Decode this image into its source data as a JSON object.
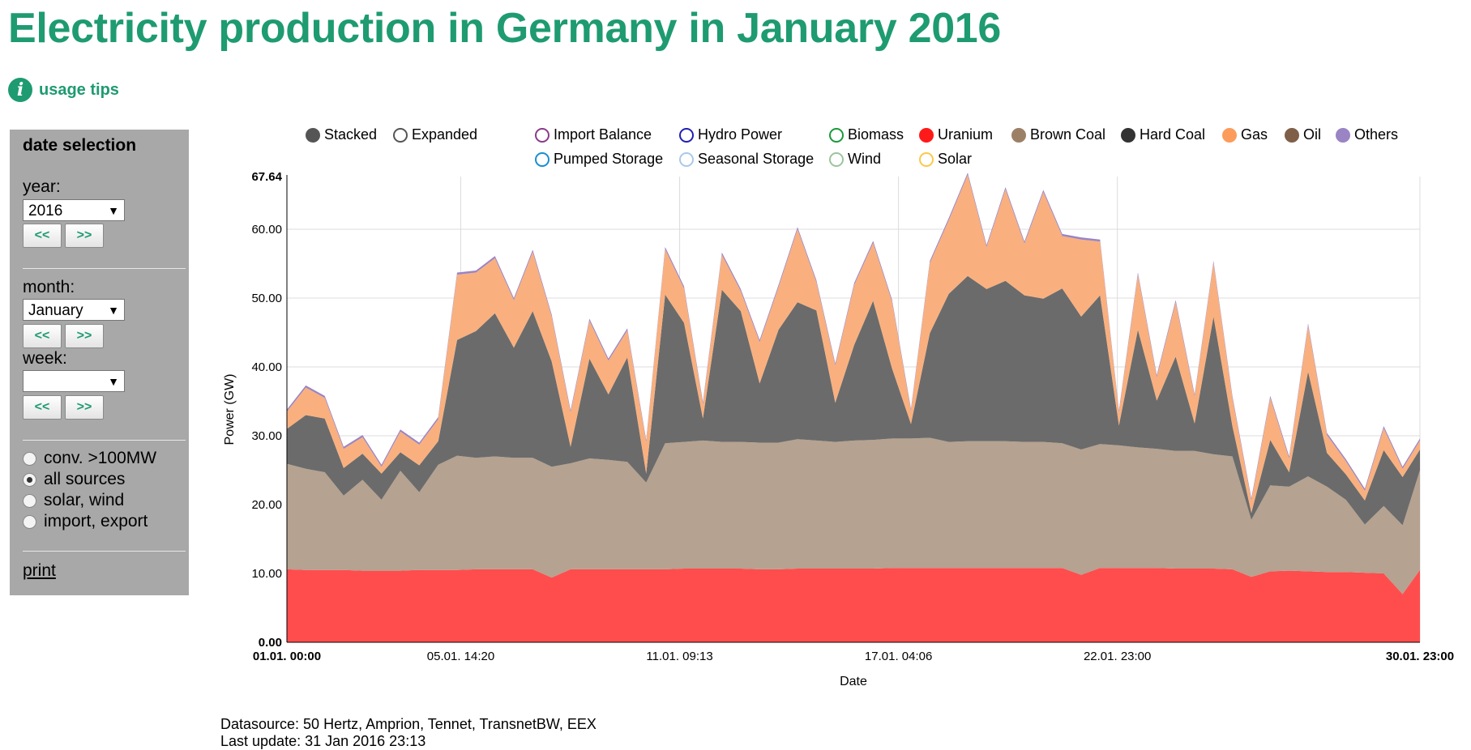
{
  "title": "Electricity production in Germany in January 2016",
  "usage_tips": "usage tips",
  "sidebar": {
    "heading": "date selection",
    "year_label": "year:",
    "year_value": "2016",
    "month_label": "month:",
    "month_value": "January",
    "week_label": "week:",
    "week_value": "",
    "prev": "<<",
    "next": ">>",
    "radios": [
      {
        "label": "conv. >100MW",
        "selected": false
      },
      {
        "label": "all sources",
        "selected": true
      },
      {
        "label": "solar, wind",
        "selected": false
      },
      {
        "label": "import, export",
        "selected": false
      }
    ],
    "print": "print"
  },
  "legend": {
    "modes": [
      {
        "label": "Stacked",
        "color": "#555555",
        "filled": true
      },
      {
        "label": "Expanded",
        "color": "#555555",
        "filled": false
      }
    ],
    "sources": [
      {
        "label": "Import Balance",
        "color": "#8b3a8b",
        "filled": false
      },
      {
        "label": "Hydro Power",
        "color": "#1f1fb4",
        "filled": false
      },
      {
        "label": "Biomass",
        "color": "#1a9a3a",
        "filled": false
      },
      {
        "label": "Uranium",
        "color": "#ff1a1a",
        "filled": true
      },
      {
        "label": "Brown Coal",
        "color": "#9c8066",
        "filled": true
      },
      {
        "label": "Hard Coal",
        "color": "#333333",
        "filled": true
      },
      {
        "label": "Gas",
        "color": "#fc9c5c",
        "filled": true
      },
      {
        "label": "Oil",
        "color": "#7f5f48",
        "filled": true
      },
      {
        "label": "Others",
        "color": "#9a84c4",
        "filled": true
      },
      {
        "label": "Pumped Storage",
        "color": "#1a8ed0",
        "filled": false
      },
      {
        "label": "Seasonal Storage",
        "color": "#a9c8ec",
        "filled": false
      },
      {
        "label": "Wind",
        "color": "#9cc49c",
        "filled": false
      },
      {
        "label": "Solar",
        "color": "#fcc84a",
        "filled": false
      }
    ]
  },
  "chart_data": {
    "type": "area",
    "stacked": true,
    "xlabel": "Date",
    "ylabel": "Power (GW)",
    "ylim": [
      0,
      67.64
    ],
    "yticks": [
      0.0,
      10.0,
      20.0,
      30.0,
      40.0,
      50.0,
      60.0
    ],
    "ymax_label": "67.64",
    "x_unit": "days since 01.01. 00:00",
    "xlim": [
      0,
      29.958
    ],
    "xticks": [
      {
        "value": 0,
        "label": "01.01. 00:00",
        "bold": true
      },
      {
        "value": 4.597,
        "label": "05.01. 14:20",
        "bold": false
      },
      {
        "value": 10.384,
        "label": "11.01. 09:13",
        "bold": false
      },
      {
        "value": 16.171,
        "label": "17.01. 04:06",
        "bold": false
      },
      {
        "value": 21.958,
        "label": "22.01. 23:00",
        "bold": false
      },
      {
        "value": 29.958,
        "label": "30.01. 23:00",
        "bold": true
      }
    ],
    "grid": true,
    "series_order": [
      "Uranium",
      "Brown Coal",
      "Hard Coal",
      "Gas",
      "Others"
    ],
    "colors": {
      "Uranium": "#ff4d4d",
      "Brown Coal": "#b5a290",
      "Hard Coal": "#6b6b6b",
      "Gas": "#f9b07e",
      "Others": "#9a84c4"
    },
    "x": [
      0,
      0.5,
      1,
      1.5,
      2,
      2.5,
      3,
      3.5,
      4,
      4.5,
      5,
      5.5,
      6,
      6.5,
      7,
      7.5,
      8,
      8.5,
      9,
      9.5,
      10,
      10.5,
      11,
      11.5,
      12,
      12.5,
      13,
      13.5,
      14,
      14.5,
      15,
      15.5,
      16,
      16.5,
      17,
      17.5,
      18,
      18.5,
      19,
      19.5,
      20,
      20.5,
      21,
      21.5,
      22,
      22.5,
      23,
      23.5,
      24,
      24.5,
      25,
      25.5,
      26,
      26.5,
      27,
      27.5,
      28,
      28.5,
      29,
      29.5,
      29.958
    ],
    "series": [
      {
        "name": "Uranium",
        "values": [
          10.6,
          10.5,
          10.5,
          10.5,
          10.4,
          10.4,
          10.4,
          10.5,
          10.5,
          10.5,
          10.6,
          10.6,
          10.6,
          10.6,
          9.4,
          10.6,
          10.6,
          10.6,
          10.6,
          10.6,
          10.6,
          10.7,
          10.7,
          10.7,
          10.7,
          10.6,
          10.6,
          10.7,
          10.7,
          10.7,
          10.7,
          10.7,
          10.8,
          10.8,
          10.8,
          10.8,
          10.8,
          10.8,
          10.8,
          10.8,
          10.8,
          10.8,
          9.8,
          10.8,
          10.8,
          10.8,
          10.8,
          10.7,
          10.7,
          10.7,
          10.6,
          9.5,
          10.3,
          10.4,
          10.3,
          10.2,
          10.2,
          10.1,
          10.0,
          7.0,
          10.5
        ]
      },
      {
        "name": "Brown Coal",
        "values": [
          15.3,
          14.7,
          14.2,
          10.8,
          13.2,
          10.3,
          14.5,
          11.3,
          15.3,
          16.6,
          16.2,
          16.4,
          16.2,
          16.2,
          16.1,
          15.4,
          16.1,
          15.9,
          15.6,
          12.6,
          18.3,
          18.4,
          18.6,
          18.4,
          18.4,
          18.4,
          18.4,
          18.8,
          18.6,
          18.4,
          18.6,
          18.7,
          18.8,
          18.8,
          18.9,
          18.3,
          18.4,
          18.4,
          18.4,
          18.3,
          18.3,
          18.1,
          18.2,
          18.0,
          17.8,
          17.5,
          17.3,
          17.1,
          17.1,
          16.6,
          16.4,
          8.3,
          12.5,
          12.2,
          13.8,
          12.4,
          10.5,
          7.0,
          9.8,
          10.0,
          14.5
        ]
      },
      {
        "name": "Hard Coal",
        "values": [
          5.1,
          7.8,
          7.8,
          4.0,
          3.8,
          3.8,
          2.7,
          3.9,
          3.4,
          16.8,
          18.4,
          20.8,
          16.0,
          21.3,
          15.3,
          2.4,
          14.5,
          9.5,
          15.2,
          1.3,
          21.6,
          17.3,
          3.2,
          22.1,
          19.0,
          8.6,
          16.4,
          19.9,
          18.9,
          5.7,
          13.9,
          20.2,
          10.2,
          2.1,
          15.2,
          21.5,
          24.0,
          22.1,
          23.3,
          21.3,
          20.8,
          22.5,
          19.3,
          21.6,
          2.9,
          17.1,
          7.0,
          13.7,
          4.0,
          20.0,
          4.4,
          1.0,
          6.6,
          2.1,
          15.2,
          4.9,
          3.7,
          3.5,
          8.1,
          7.0,
          3.0
        ]
      },
      {
        "name": "Gas",
        "values": [
          2.5,
          4.0,
          3.0,
          2.8,
          2.4,
          1.0,
          3.0,
          3.0,
          3.2,
          9.5,
          8.5,
          8.0,
          6.9,
          8.6,
          6.5,
          5.0,
          5.5,
          4.9,
          3.9,
          4.6,
          6.6,
          5.0,
          2.1,
          5.1,
          2.9,
          6.0,
          6.2,
          10.6,
          4.1,
          5.4,
          8.7,
          8.4,
          9.7,
          1.9,
          10.2,
          10.7,
          14.7,
          6.1,
          13.3,
          7.5,
          15.5,
          7.6,
          11.2,
          7.8,
          1.9,
          8.0,
          3.4,
          7.9,
          3.9,
          7.8,
          4.1,
          1.8,
          6.1,
          2.0,
          6.7,
          2.6,
          1.9,
          1.4,
          3.2,
          1.2,
          1.3
        ]
      },
      {
        "name": "Others",
        "values": [
          0.3,
          0.3,
          0.3,
          0.3,
          0.3,
          0.3,
          0.3,
          0.3,
          0.3,
          0.3,
          0.3,
          0.3,
          0.3,
          0.3,
          0.3,
          0.3,
          0.3,
          0.3,
          0.3,
          0.3,
          0.3,
          0.3,
          0.3,
          0.3,
          0.3,
          0.3,
          0.3,
          0.3,
          0.3,
          0.3,
          0.3,
          0.3,
          0.3,
          0.3,
          0.3,
          0.3,
          0.3,
          0.3,
          0.3,
          0.3,
          0.3,
          0.3,
          0.3,
          0.3,
          0.3,
          0.3,
          0.3,
          0.3,
          0.3,
          0.3,
          0.3,
          0.3,
          0.3,
          0.3,
          0.3,
          0.3,
          0.3,
          0.3,
          0.3,
          0.3,
          0.3
        ]
      }
    ]
  },
  "footer": {
    "datasource": "Datasource: 50 Hertz, Amprion, Tennet, TransnetBW, EEX",
    "last_update": "Last update: 31 Jan 2016 23:13"
  }
}
